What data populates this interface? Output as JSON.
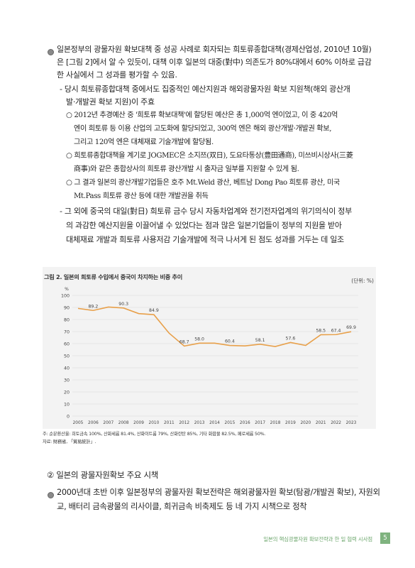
{
  "body": {
    "para1": [
      "일본정부의 광물자원 확보대책 중 성공 사례로 회자되는 희토류종합대책(경제산업성, 2010년 10월)",
      "은 [그림 2]에서 알 수 있듯이, 대책 이후 일본의 대중(對中) 의존도가 80%대에서 60% 이하로 급감",
      "한 사실에서 그 성과를 평가할 수 있음."
    ],
    "sub1": [
      "- 당시 희토류종합대책 중에서도 집중적인 예산지원과 해외광물자원 확보 지원책(해외 광산개",
      "발·개발권 확보 지원)이 주효"
    ],
    "sub1_items": [
      [
        "○ 2012년 추경예산 중 '희토류 확보대책'에 할당된 예산은 총 1,000억 엔이었고, 이 중 420억",
        "엔이 희토류 등 이용 산업의 고도화에 할당되었고, 300억 엔은 해외 광산개발·개발권 확보,",
        "그리고 120억 엔은 대체재료 기술개발에 할당됨."
      ],
      [
        "○ 희토류종합대책을 계기로 JOGMEC은 소지쯔(双日), 도요타통상(豊田通商), 미쓰비시상사(三菱",
        "商事)와 같은 종합상사의 희토류 광산개발 시 출자금 일부를 지원할 수 있게 됨."
      ],
      [
        "○ 그 결과 일본의 광산개발기업들은 호주 Mt.Weld 광산, 베트남 Dong Pao 희토류 광산, 미국",
        "Mt.Pass 희토류 광산 등에 대한 개발권을 취득"
      ]
    ],
    "sub2": [
      "- 그 외에 중국의 대일(對日) 희토류 금수 당시 자동차업계와 전기전자업계의 위기의식이 정부",
      "의 과감한 예산지원을 이끌어낼 수 있었다는 점과 많은 일본기업들이 정부의 지원을 받아",
      "대체재료 개발과 희토류 사용저감 기술개발에 적극 나서게 된 점도 성과를 거두는 데 일조"
    ]
  },
  "figure": {
    "title": "그림 2. 일본의 희토류 수입에서 중국이 차지하는 비중 추이",
    "unit": "(단위: %)",
    "notes": [
      "주: 순분환산율: 희토금속 100%, 산화세륨 81.4%, 산화이트륨 79%, 산화란탄 85%, 기타 화합물 82.5%, 페로세륨 50%.",
      "자료: 財務省, 「貿易統計」."
    ]
  },
  "chart_data": {
    "type": "line",
    "title": "",
    "xlabel": "",
    "ylabel": "%",
    "ylim": [
      0,
      100
    ],
    "yticks": [
      0,
      10,
      20,
      30,
      40,
      50,
      60,
      70,
      80,
      90,
      100
    ],
    "x": [
      "2005",
      "2006",
      "2007",
      "2008",
      "2009",
      "2010",
      "2011",
      "2012",
      "2013",
      "2014",
      "2015",
      "2016",
      "2017",
      "2018",
      "2019",
      "2020",
      "2021",
      "2022",
      "2023"
    ],
    "series": [
      {
        "values": [
          89.2,
          87.5,
          90.3,
          89.5,
          84.9,
          84.0,
          68.7,
          58.0,
          60.4,
          60.4,
          58.5,
          58.1,
          59.5,
          57.6,
          61.0,
          58.5,
          67.4,
          67.5,
          69.9
        ]
      }
    ],
    "data_labels": [
      {
        "i": 1,
        "text": "89.2"
      },
      {
        "i": 3,
        "text": "90.3"
      },
      {
        "i": 5,
        "text": "84.9"
      },
      {
        "i": 7,
        "text": "68.7"
      },
      {
        "i": 8,
        "text": "58.0"
      },
      {
        "i": 10,
        "text": "60.4"
      },
      {
        "i": 12,
        "text": "58.1"
      },
      {
        "i": 14,
        "text": "57.6"
      },
      {
        "i": 16,
        "text": "58.5"
      },
      {
        "i": 17,
        "text": "67.4"
      },
      {
        "i": 18,
        "text": "69.9"
      }
    ],
    "line_color": "#e8a04a",
    "grid": true
  },
  "section2": {
    "heading": "② 일본의 광물자원확보 주요 시책",
    "para": [
      "2000년대 초반 이후 일본정부의 광물자원 확보전략은 해외광물자원 확보(탐광/개발권 확보), 자원외",
      "교, 배터리 금속광물의 리사이클, 희귀금속 비축제도 등 네 가지 시책으로 정착"
    ]
  },
  "footer": {
    "text": "일본의 핵심광물자원 확보전략과 한 일 협력 시사점",
    "page": "5"
  },
  "colors": {
    "footer_green": "#7fb37f"
  }
}
